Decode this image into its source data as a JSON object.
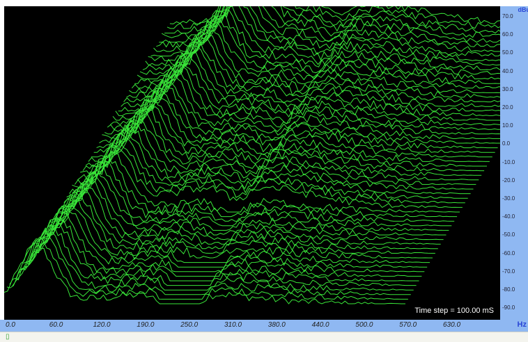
{
  "chart_data": {
    "type": "waterfall",
    "y_unit": "dBu",
    "y_ticks": [
      "70.0",
      "60.0",
      "50.0",
      "40.0",
      "30.0",
      "20.0",
      "10.0",
      "0.0",
      "-10.0",
      "-20.0",
      "-30.0",
      "-40.0",
      "-50.0",
      "-60.0",
      "-70.0",
      "-80.0",
      "-90.0"
    ],
    "x_unit": "Hz",
    "x_ticks": [
      "0.0",
      "60.0",
      "120.0",
      "190.0",
      "250.0",
      "310.0",
      "380.0",
      "440.0",
      "500.0",
      "570.0",
      "630.0"
    ],
    "time_step_label": "Time step = 100.00 mS",
    "num_slices": 62,
    "line_color": "#39e639"
  },
  "status": {
    "glyph": "▯"
  }
}
